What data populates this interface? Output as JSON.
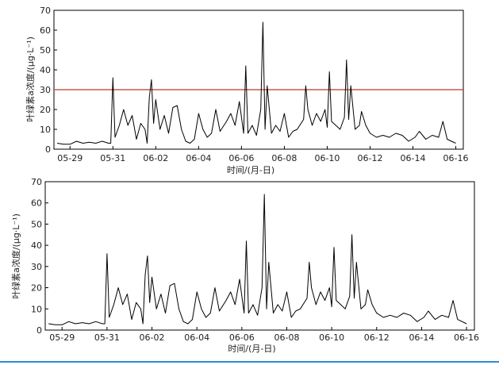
{
  "chart_data": [
    {
      "type": "line",
      "xlabel": "时间/(月-日)",
      "ylabel": "叶绿素a浓度/(μg·L⁻¹)",
      "ylim": [
        0,
        70
      ],
      "yticks": [
        0,
        10,
        20,
        30,
        40,
        50,
        60,
        70
      ],
      "xticks": [
        "05-29",
        "05-31",
        "06-02",
        "06-04",
        "06-06",
        "06-08",
        "06-10",
        "06-12",
        "06-14",
        "06-16"
      ],
      "x_unit": "days from 05-29",
      "threshold": {
        "value": 30,
        "color": "#c0392b"
      },
      "series": [
        {
          "values": [
            [
              -0.6,
              3
            ],
            [
              -0.3,
              2.5
            ],
            [
              0,
              2.5
            ],
            [
              0.3,
              4
            ],
            [
              0.6,
              3
            ],
            [
              0.9,
              3.5
            ],
            [
              1.2,
              3
            ],
            [
              1.5,
              4
            ],
            [
              1.8,
              3
            ],
            [
              1.9,
              3
            ],
            [
              2.0,
              36
            ],
            [
              2.1,
              6
            ],
            [
              2.3,
              12
            ],
            [
              2.5,
              20
            ],
            [
              2.7,
              12
            ],
            [
              2.9,
              17
            ],
            [
              3.1,
              5
            ],
            [
              3.3,
              13
            ],
            [
              3.5,
              10
            ],
            [
              3.6,
              3
            ],
            [
              3.7,
              26
            ],
            [
              3.8,
              35
            ],
            [
              3.9,
              13
            ],
            [
              4.0,
              25
            ],
            [
              4.2,
              10
            ],
            [
              4.4,
              17
            ],
            [
              4.6,
              8
            ],
            [
              4.8,
              21
            ],
            [
              5.0,
              22
            ],
            [
              5.2,
              10
            ],
            [
              5.4,
              4
            ],
            [
              5.6,
              3
            ],
            [
              5.8,
              5
            ],
            [
              6.0,
              18
            ],
            [
              6.2,
              10
            ],
            [
              6.4,
              6
            ],
            [
              6.6,
              8
            ],
            [
              6.8,
              20
            ],
            [
              7.0,
              9
            ],
            [
              7.3,
              14
            ],
            [
              7.5,
              18
            ],
            [
              7.7,
              12
            ],
            [
              7.9,
              24
            ],
            [
              8.1,
              8
            ],
            [
              8.2,
              42
            ],
            [
              8.3,
              8
            ],
            [
              8.5,
              12
            ],
            [
              8.7,
              7
            ],
            [
              8.9,
              20
            ],
            [
              9.0,
              64
            ],
            [
              9.1,
              10
            ],
            [
              9.2,
              32
            ],
            [
              9.4,
              8
            ],
            [
              9.6,
              12
            ],
            [
              9.8,
              9
            ],
            [
              10.0,
              18
            ],
            [
              10.2,
              6
            ],
            [
              10.4,
              9
            ],
            [
              10.6,
              10
            ],
            [
              10.9,
              15
            ],
            [
              11.0,
              32
            ],
            [
              11.1,
              20
            ],
            [
              11.3,
              12
            ],
            [
              11.5,
              18
            ],
            [
              11.7,
              14
            ],
            [
              11.9,
              20
            ],
            [
              12.0,
              11
            ],
            [
              12.1,
              39
            ],
            [
              12.2,
              14
            ],
            [
              12.4,
              12
            ],
            [
              12.6,
              10
            ],
            [
              12.8,
              16
            ],
            [
              12.9,
              45
            ],
            [
              13.0,
              15
            ],
            [
              13.1,
              32
            ],
            [
              13.3,
              10
            ],
            [
              13.5,
              12
            ],
            [
              13.6,
              19
            ],
            [
              13.8,
              12
            ],
            [
              14.0,
              8
            ],
            [
              14.3,
              6
            ],
            [
              14.6,
              7
            ],
            [
              14.9,
              6
            ],
            [
              15.2,
              8
            ],
            [
              15.5,
              7
            ],
            [
              15.8,
              4
            ],
            [
              16.1,
              6
            ],
            [
              16.3,
              9
            ],
            [
              16.6,
              5
            ],
            [
              16.9,
              7
            ],
            [
              17.2,
              6
            ],
            [
              17.4,
              14
            ],
            [
              17.6,
              5
            ],
            [
              18.0,
              3
            ]
          ]
        }
      ]
    },
    {
      "type": "line",
      "xlabel": "时间/(月-日)",
      "ylabel": "叶绿素a浓度/(μg·L⁻¹)",
      "ylim": [
        0,
        70
      ],
      "yticks": [
        0,
        10,
        20,
        30,
        40,
        50,
        60,
        70
      ],
      "xticks": [
        "05-29",
        "05-31",
        "06-02",
        "06-04",
        "06-06",
        "06-08",
        "06-10",
        "06-12",
        "06-14",
        "06-16"
      ],
      "x_unit": "days from 05-29",
      "series": [
        {
          "values": [
            [
              -0.6,
              3
            ],
            [
              -0.3,
              2.5
            ],
            [
              0,
              2.5
            ],
            [
              0.3,
              4
            ],
            [
              0.6,
              3
            ],
            [
              0.9,
              3.5
            ],
            [
              1.2,
              3
            ],
            [
              1.5,
              4
            ],
            [
              1.8,
              3
            ],
            [
              1.9,
              3
            ],
            [
              2.0,
              36
            ],
            [
              2.1,
              6
            ],
            [
              2.3,
              12
            ],
            [
              2.5,
              20
            ],
            [
              2.7,
              12
            ],
            [
              2.9,
              17
            ],
            [
              3.1,
              5
            ],
            [
              3.3,
              13
            ],
            [
              3.5,
              10
            ],
            [
              3.6,
              3
            ],
            [
              3.7,
              26
            ],
            [
              3.8,
              35
            ],
            [
              3.9,
              13
            ],
            [
              4.0,
              25
            ],
            [
              4.2,
              10
            ],
            [
              4.4,
              17
            ],
            [
              4.6,
              8
            ],
            [
              4.8,
              21
            ],
            [
              5.0,
              22
            ],
            [
              5.2,
              10
            ],
            [
              5.4,
              4
            ],
            [
              5.6,
              3
            ],
            [
              5.8,
              5
            ],
            [
              6.0,
              18
            ],
            [
              6.2,
              10
            ],
            [
              6.4,
              6
            ],
            [
              6.6,
              8
            ],
            [
              6.8,
              20
            ],
            [
              7.0,
              9
            ],
            [
              7.3,
              14
            ],
            [
              7.5,
              18
            ],
            [
              7.7,
              12
            ],
            [
              7.9,
              24
            ],
            [
              8.1,
              8
            ],
            [
              8.2,
              42
            ],
            [
              8.3,
              8
            ],
            [
              8.5,
              12
            ],
            [
              8.7,
              7
            ],
            [
              8.9,
              20
            ],
            [
              9.0,
              64
            ],
            [
              9.1,
              10
            ],
            [
              9.2,
              32
            ],
            [
              9.4,
              8
            ],
            [
              9.6,
              12
            ],
            [
              9.8,
              9
            ],
            [
              10.0,
              18
            ],
            [
              10.2,
              6
            ],
            [
              10.4,
              9
            ],
            [
              10.6,
              10
            ],
            [
              10.9,
              15
            ],
            [
              11.0,
              32
            ],
            [
              11.1,
              20
            ],
            [
              11.3,
              12
            ],
            [
              11.5,
              18
            ],
            [
              11.7,
              14
            ],
            [
              11.9,
              20
            ],
            [
              12.0,
              11
            ],
            [
              12.1,
              39
            ],
            [
              12.2,
              14
            ],
            [
              12.4,
              12
            ],
            [
              12.6,
              10
            ],
            [
              12.8,
              16
            ],
            [
              12.9,
              45
            ],
            [
              13.0,
              15
            ],
            [
              13.1,
              32
            ],
            [
              13.3,
              10
            ],
            [
              13.5,
              12
            ],
            [
              13.6,
              19
            ],
            [
              13.8,
              12
            ],
            [
              14.0,
              8
            ],
            [
              14.3,
              6
            ],
            [
              14.6,
              7
            ],
            [
              14.9,
              6
            ],
            [
              15.2,
              8
            ],
            [
              15.5,
              7
            ],
            [
              15.8,
              4
            ],
            [
              16.1,
              6
            ],
            [
              16.3,
              9
            ],
            [
              16.6,
              5
            ],
            [
              16.9,
              7
            ],
            [
              17.2,
              6
            ],
            [
              17.4,
              14
            ],
            [
              17.6,
              5
            ],
            [
              18.0,
              3
            ]
          ]
        }
      ]
    }
  ]
}
